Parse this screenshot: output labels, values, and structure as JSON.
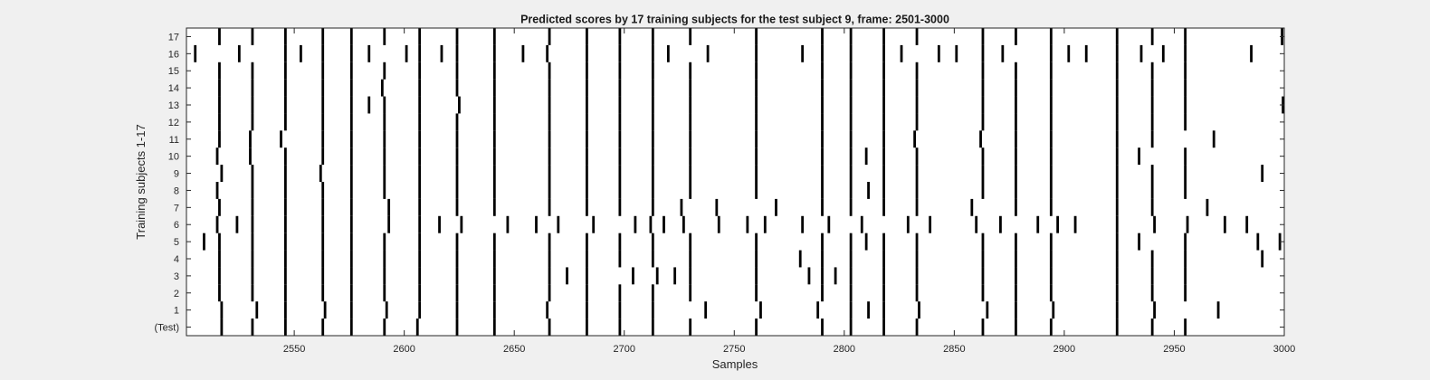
{
  "chart_data": {
    "type": "heatmap",
    "title": "Predicted scores by 17 training subjects for the test subject 9, frame: 2501-3000",
    "xlabel": "Samples",
    "ylabel": "Training subjects 1-17",
    "xlim": [
      2501,
      3000
    ],
    "x_ticks": [
      2550,
      2600,
      2650,
      2700,
      2750,
      2800,
      2850,
      2900,
      2950,
      3000
    ],
    "row_labels": [
      "(Test)",
      "1",
      "2",
      "3",
      "4",
      "5",
      "6",
      "7",
      "8",
      "9",
      "10",
      "11",
      "12",
      "13",
      "14",
      "15",
      "16",
      "17"
    ],
    "grid": false,
    "colors": {
      "background": "#ffffff",
      "mark": "#000000",
      "figure": "#f0f0f0"
    },
    "rows": [
      {
        "label": "(Test)",
        "events": [
          2517,
          2531,
          2546,
          2563,
          2576,
          2591,
          2606,
          2624,
          2641,
          2666,
          2683,
          2698,
          2713,
          2730,
          2760,
          2790,
          2803,
          2818,
          2833,
          2863,
          2878,
          2894,
          2924,
          2940,
          2955
        ]
      },
      {
        "label": "1",
        "events": [
          2517,
          2533,
          2546,
          2564,
          2576,
          2592,
          2607,
          2624,
          2641,
          2665,
          2683,
          2698,
          2713,
          2737,
          2762,
          2788,
          2803,
          2811,
          2818,
          2834,
          2865,
          2878,
          2895,
          2924,
          2941,
          2970
        ]
      },
      {
        "label": "2",
        "events": [
          2516,
          2531,
          2546,
          2563,
          2576,
          2591,
          2607,
          2624,
          2641,
          2666,
          2683,
          2698,
          2713,
          2730,
          2760,
          2790,
          2803,
          2818,
          2833,
          2863,
          2878,
          2894,
          2924,
          2940,
          2955
        ]
      },
      {
        "label": "3",
        "events": [
          2516,
          2531,
          2546,
          2563,
          2576,
          2591,
          2607,
          2624,
          2641,
          2666,
          2674,
          2683,
          2704,
          2715,
          2723,
          2730,
          2760,
          2784,
          2790,
          2796,
          2803,
          2818,
          2833,
          2863,
          2878,
          2894,
          2924,
          2940,
          2955
        ]
      },
      {
        "label": "4",
        "events": [
          2516,
          2531,
          2546,
          2563,
          2576,
          2591,
          2607,
          2624,
          2641,
          2666,
          2683,
          2698,
          2713,
          2730,
          2760,
          2780,
          2790,
          2803,
          2818,
          2833,
          2863,
          2878,
          2894,
          2924,
          2940,
          2955,
          2990
        ]
      },
      {
        "label": "5",
        "events": [
          2509,
          2516,
          2531,
          2546,
          2563,
          2576,
          2591,
          2607,
          2624,
          2641,
          2666,
          2683,
          2698,
          2713,
          2730,
          2760,
          2790,
          2803,
          2810,
          2818,
          2833,
          2863,
          2878,
          2894,
          2924,
          2934,
          2955,
          2988,
          2998
        ]
      },
      {
        "label": "6",
        "events": [
          2515,
          2524,
          2531,
          2546,
          2563,
          2576,
          2593,
          2607,
          2616,
          2626,
          2647,
          2660,
          2670,
          2686,
          2705,
          2712,
          2718,
          2727,
          2743,
          2756,
          2764,
          2781,
          2793,
          2808,
          2829,
          2839,
          2860,
          2871,
          2888,
          2897,
          2905,
          2924,
          2941,
          2956,
          2973,
          2983
        ]
      },
      {
        "label": "7",
        "events": [
          2516,
          2531,
          2546,
          2563,
          2576,
          2593,
          2607,
          2624,
          2641,
          2666,
          2683,
          2698,
          2713,
          2726,
          2742,
          2769,
          2790,
          2803,
          2818,
          2833,
          2858,
          2878,
          2894,
          2924,
          2940,
          2965
        ]
      },
      {
        "label": "8",
        "events": [
          2515,
          2531,
          2546,
          2563,
          2576,
          2591,
          2607,
          2624,
          2641,
          2666,
          2683,
          2698,
          2713,
          2730,
          2760,
          2790,
          2803,
          2811,
          2818,
          2833,
          2863,
          2878,
          2894,
          2924,
          2940,
          2955
        ]
      },
      {
        "label": "9",
        "events": [
          2517,
          2531,
          2546,
          2562,
          2576,
          2591,
          2607,
          2624,
          2641,
          2666,
          2683,
          2698,
          2713,
          2730,
          2760,
          2790,
          2803,
          2818,
          2833,
          2863,
          2878,
          2894,
          2924,
          2940,
          2955,
          2990
        ]
      },
      {
        "label": "10",
        "events": [
          2515,
          2530,
          2546,
          2563,
          2576,
          2591,
          2607,
          2624,
          2641,
          2666,
          2683,
          2698,
          2713,
          2730,
          2760,
          2790,
          2803,
          2810,
          2818,
          2833,
          2863,
          2878,
          2894,
          2924,
          2934,
          2955
        ]
      },
      {
        "label": "11",
        "events": [
          2516,
          2530,
          2544,
          2563,
          2576,
          2591,
          2607,
          2624,
          2641,
          2666,
          2683,
          2698,
          2713,
          2730,
          2760,
          2790,
          2803,
          2818,
          2832,
          2862,
          2878,
          2894,
          2924,
          2940,
          2968
        ]
      },
      {
        "label": "12",
        "events": [
          2516,
          2531,
          2546,
          2563,
          2576,
          2591,
          2607,
          2624,
          2641,
          2666,
          2683,
          2698,
          2713,
          2730,
          2760,
          2790,
          2803,
          2818,
          2833,
          2863,
          2878,
          2894,
          2924,
          2940,
          2955
        ]
      },
      {
        "label": "13",
        "events": [
          2516,
          2531,
          2546,
          2563,
          2576,
          2584,
          2591,
          2607,
          2625,
          2641,
          2666,
          2683,
          2698,
          2713,
          2730,
          2760,
          2790,
          2803,
          2818,
          2833,
          2863,
          2878,
          2894,
          2924,
          2940,
          2955,
          3000
        ]
      },
      {
        "label": "14",
        "events": [
          2516,
          2531,
          2546,
          2563,
          2576,
          2590,
          2607,
          2624,
          2641,
          2666,
          2683,
          2698,
          2713,
          2730,
          2760,
          2790,
          2803,
          2818,
          2833,
          2863,
          2878,
          2894,
          2924,
          2940,
          2955
        ]
      },
      {
        "label": "15",
        "events": [
          2516,
          2531,
          2546,
          2563,
          2576,
          2591,
          2607,
          2624,
          2641,
          2666,
          2683,
          2698,
          2713,
          2730,
          2760,
          2790,
          2803,
          2818,
          2833,
          2863,
          2878,
          2894,
          2924,
          2940,
          2955
        ]
      },
      {
        "label": "16",
        "events": [
          2505,
          2525,
          2546,
          2553,
          2563,
          2576,
          2584,
          2601,
          2607,
          2617,
          2624,
          2641,
          2654,
          2665,
          2683,
          2698,
          2713,
          2720,
          2738,
          2760,
          2781,
          2790,
          2803,
          2818,
          2826,
          2843,
          2851,
          2863,
          2872,
          2894,
          2902,
          2910,
          2924,
          2935,
          2945,
          2955,
          2985
        ]
      },
      {
        "label": "17",
        "events": [
          2516,
          2531,
          2546,
          2563,
          2576,
          2591,
          2607,
          2624,
          2641,
          2666,
          2683,
          2698,
          2713,
          2730,
          2760,
          2790,
          2803,
          2818,
          2833,
          2863,
          2878,
          2894,
          2924,
          2940,
          2955,
          2999
        ]
      }
    ]
  }
}
